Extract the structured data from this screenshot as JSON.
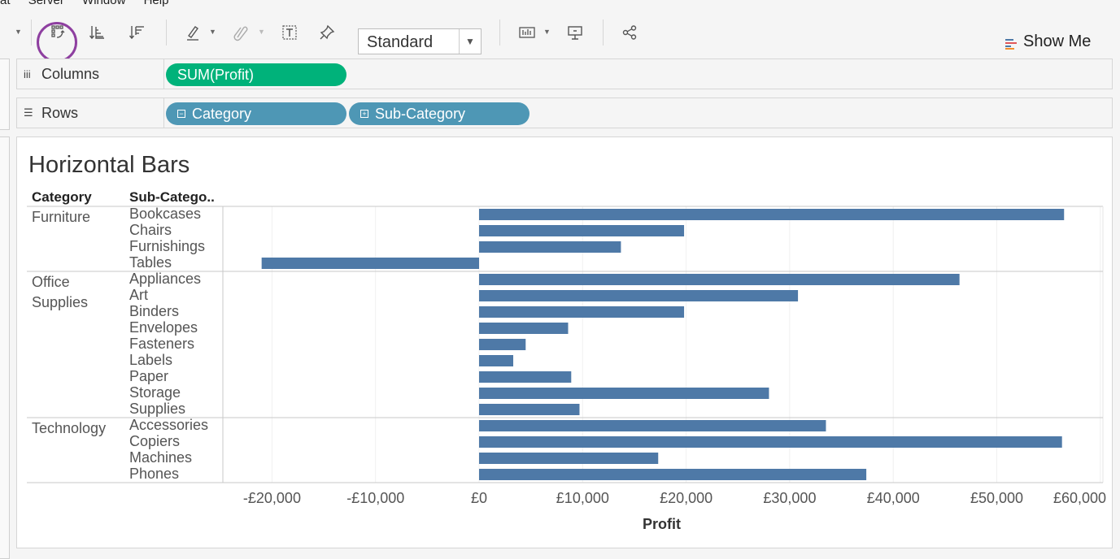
{
  "menu": [
    "at",
    "Server",
    "Window",
    "Help"
  ],
  "toolbar": {
    "fit_value": "Standard",
    "show_me_label": "Show Me",
    "icons": [
      "swap-rows-columns-icon",
      "sort-ascending-icon",
      "sort-descending-icon",
      "highlight-icon",
      "group-members-icon",
      "show-mark-labels-icon",
      "pin-axes-icon",
      "fit-dropdown",
      "show-cards-icon",
      "presentation-mode-icon",
      "share-icon"
    ]
  },
  "shelves": {
    "columns_label": "Columns",
    "rows_label": "Rows",
    "columns_pills": [
      "SUM(Profit)"
    ],
    "rows_pills": [
      "Category",
      "Sub-Category"
    ]
  },
  "viz": {
    "title": "Horizontal Bars",
    "header_category": "Category",
    "header_subcategory": "Sub-Catego..",
    "bar_color": "#4e79a7",
    "pill_green": "#00b27a",
    "pill_blue": "#4e97b5",
    "highlight_circle": "#8e3fa0"
  },
  "chart_data": {
    "type": "bar",
    "orientation": "horizontal",
    "title": "Horizontal Bars",
    "xlabel": "Profit",
    "xlim": [
      -25000,
      60500
    ],
    "ticks": [
      "-£20,000",
      "-£10,000",
      "£0",
      "£10,000",
      "£20,000",
      "£30,000",
      "£40,000",
      "£50,000",
      "£60,000"
    ],
    "tick_values": [
      -20000,
      -10000,
      0,
      10000,
      20000,
      30000,
      40000,
      50000,
      60000
    ],
    "groups": [
      {
        "category": "Furniture",
        "items": [
          {
            "name": "Bookcases",
            "value": 56500
          },
          {
            "name": "Chairs",
            "value": 19800
          },
          {
            "name": "Furnishings",
            "value": 13700
          },
          {
            "name": "Tables",
            "value": -21000
          }
        ]
      },
      {
        "category": "Office Supplies",
        "items": [
          {
            "name": "Appliances",
            "value": 46400
          },
          {
            "name": "Art",
            "value": 30800
          },
          {
            "name": "Binders",
            "value": 19800
          },
          {
            "name": "Envelopes",
            "value": 8600
          },
          {
            "name": "Fasteners",
            "value": 4500
          },
          {
            "name": "Labels",
            "value": 3300
          },
          {
            "name": "Paper",
            "value": 8900
          },
          {
            "name": "Storage",
            "value": 28000
          },
          {
            "name": "Supplies",
            "value": 9700
          }
        ]
      },
      {
        "category": "Technology",
        "items": [
          {
            "name": "Accessories",
            "value": 33500
          },
          {
            "name": "Copiers",
            "value": 56300
          },
          {
            "name": "Machines",
            "value": 17300
          },
          {
            "name": "Phones",
            "value": 37400
          }
        ]
      }
    ]
  }
}
